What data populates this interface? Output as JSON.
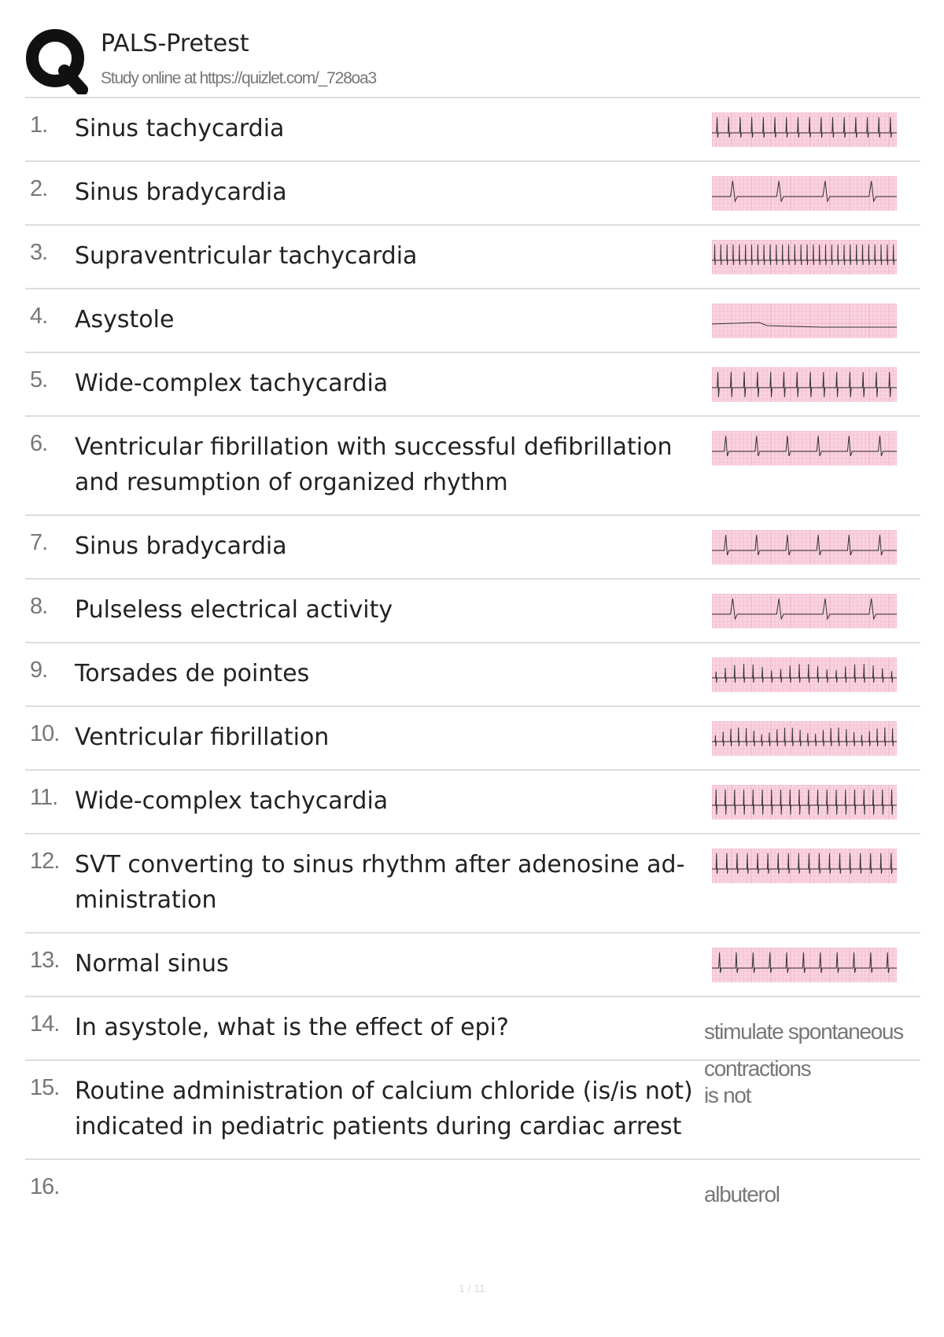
{
  "header": {
    "title": "PALS-Pretest",
    "subtitle": "Study online at https://quizlet.com/_728oa3"
  },
  "items": [
    {
      "number": "1.",
      "term": "Sinus tachycardia"
    },
    {
      "number": "2.",
      "term": "Sinus bradycardia"
    },
    {
      "number": "3.",
      "term": "Supraventricular tachycardia"
    },
    {
      "number": "4.",
      "term": "Asystole"
    },
    {
      "number": "5.",
      "term": "Wide-complex tachycardia"
    },
    {
      "number": "6.",
      "term": "Ventricular fibrillation with successful defibrillation and resumption of organized rhythm"
    },
    {
      "number": "7.",
      "term": "Sinus bradycardia"
    },
    {
      "number": "8.",
      "term": "Pulseless electrical activity"
    },
    {
      "number": "9.",
      "term": "Torsades de pointes"
    },
    {
      "number": "10.",
      "term": "Ventricular fibrillation"
    },
    {
      "number": "11.",
      "term": "Wide-complex tachycardia"
    },
    {
      "number": "12.",
      "term": "SVT converting to sinus rhythm after adenosine ad-ministration"
    },
    {
      "number": "13.",
      "term": "Normal sinus"
    },
    {
      "number": "14.",
      "term": "In asystole, what is the effect of epi?",
      "answer": "stimulate spontaneous contractions"
    },
    {
      "number": "15.",
      "term": "Routine administration of calcium chloride (is/is not) indicated in pediatric patients during cardiac arrest",
      "answer": "is not"
    },
    {
      "number": "16.",
      "answer": "albuterol"
    }
  ],
  "footer": {
    "page": "1 / 11"
  }
}
